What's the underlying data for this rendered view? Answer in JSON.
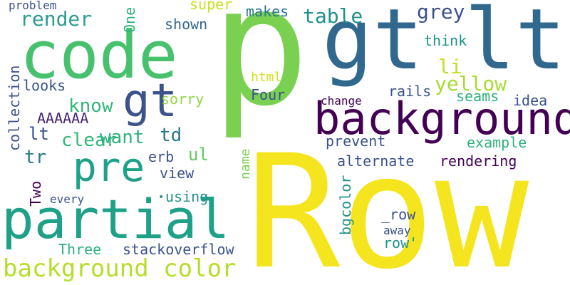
{
  "colors": {
    "background": "#ffffff",
    "purple_dark": "#440154",
    "indigo": "#3b528b",
    "blue": "#31688e",
    "teal": "#21918c",
    "teal_green": "#1fa187",
    "green": "#35b779",
    "green_bright": "#5ec962",
    "lime": "#90d743",
    "yellow_green": "#b5de2b",
    "yellow": "#fde725"
  },
  "words": {
    "p": "p",
    "row": "Row",
    "code": "code",
    "gt": "gt",
    "lt": "lt",
    "gt_small": "gt",
    "background": "background",
    "partial": "partial",
    "pre": "pre",
    "background_color": "background color",
    "render": "render",
    "table": "table",
    "grey": "grey",
    "yellow": "yellow",
    "li": "li",
    "know": "know",
    "want": "want",
    "clear": "clear",
    "td": "td",
    "ul": "ul",
    "tr": "tr",
    "lt_small": "lt",
    "AAAAAA": "AAAAAA",
    "rails": "rails",
    "seams": "seams",
    "idea": "idea",
    "think": "think",
    "makes": "makes",
    "super": "super",
    "shown": "shown",
    "problem": "problem",
    "one": "One",
    "collection": "collection",
    "looks": "looks",
    "sorry": "sorry",
    "html": "html",
    "four": "Four",
    "change": "change",
    "prevent": "prevent",
    "example": "example",
    "erb": "erb",
    "view": "view",
    "name": "name",
    "alternate": "alternate",
    "rendering": "rendering",
    "two": "Two",
    "every": "every",
    "using": "using",
    "row_underscore": "_row",
    "bgcolor": "bgcolor",
    "away": "away",
    "row_quote": "row'",
    "three": "Three",
    "stackoverflow": "stackoverflow"
  }
}
